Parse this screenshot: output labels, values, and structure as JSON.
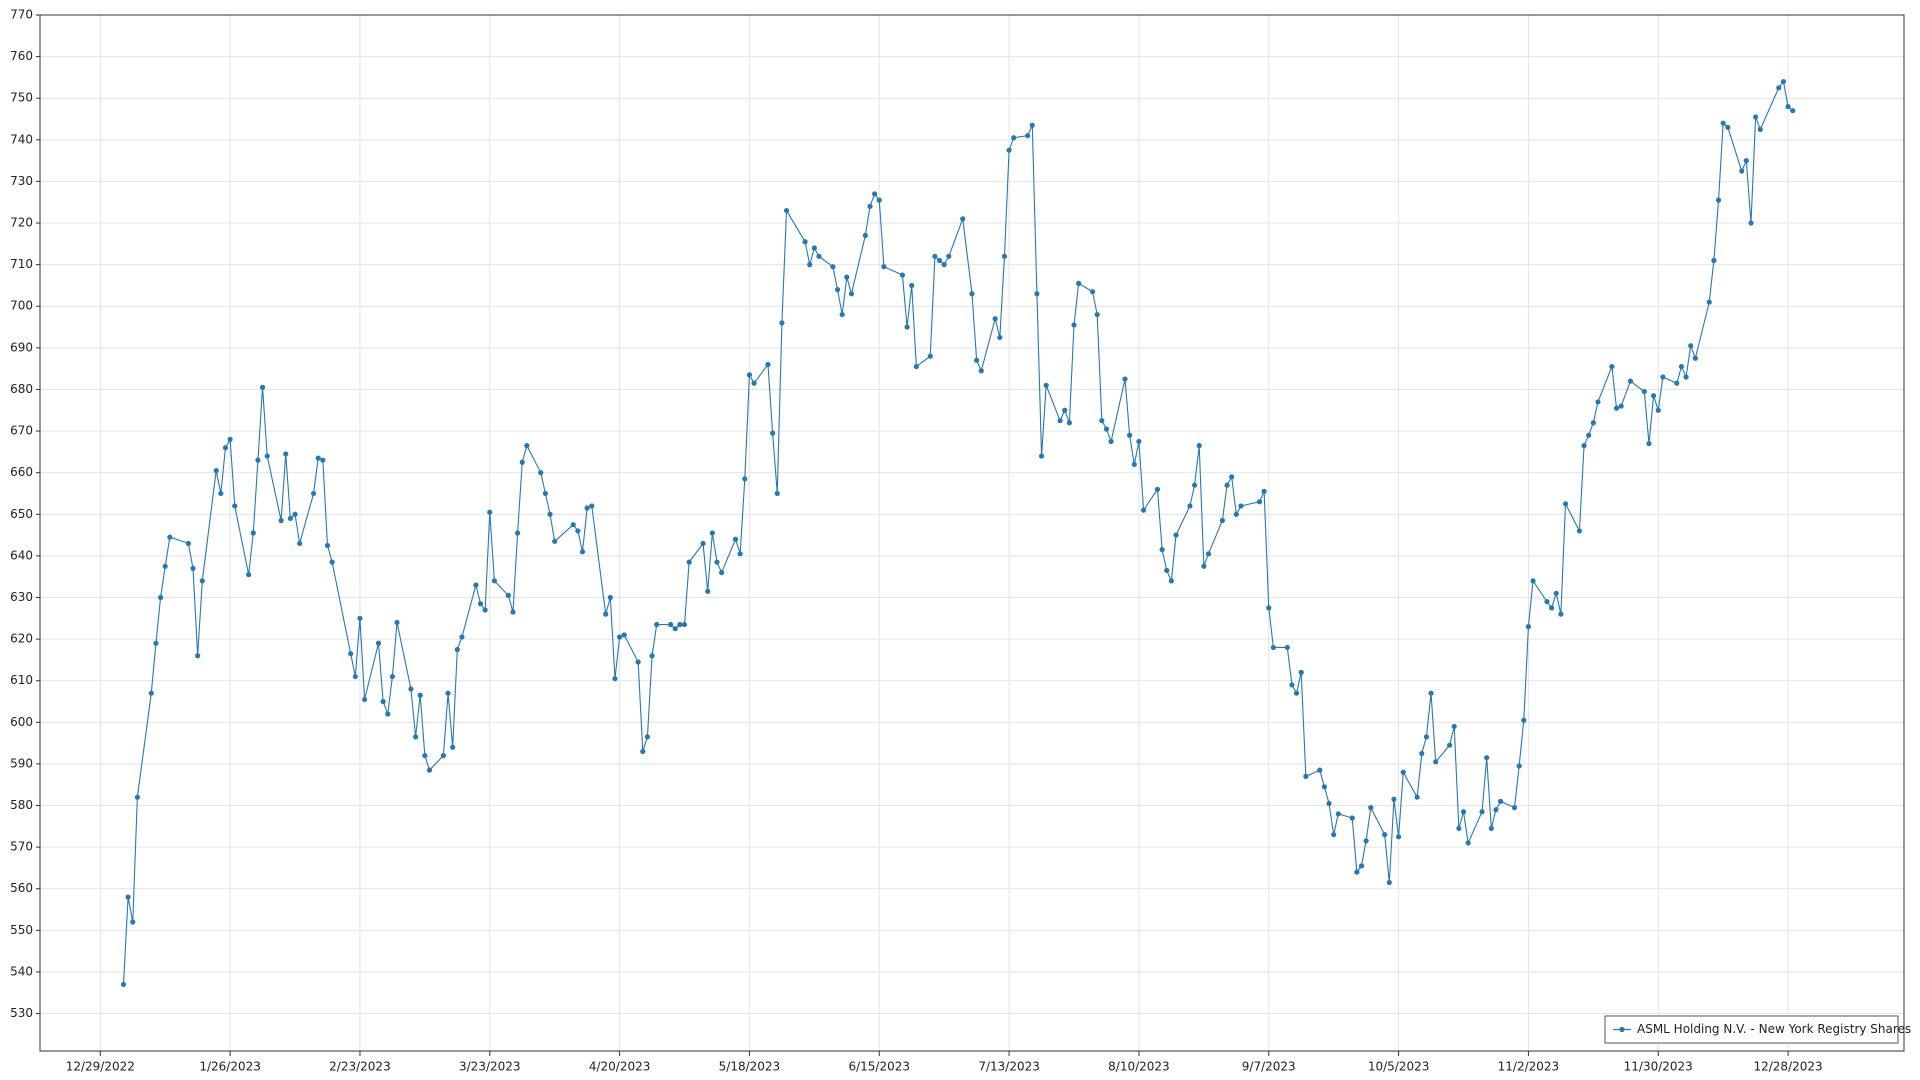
{
  "chart_data": {
    "type": "line",
    "xlim": [
      "12/16/2022",
      "1/22/2024"
    ],
    "ylim": [
      521,
      770
    ],
    "xticks": [
      "12/29/2022",
      "1/26/2023",
      "2/23/2023",
      "3/23/2023",
      "4/20/2023",
      "5/18/2023",
      "6/15/2023",
      "7/13/2023",
      "8/10/2023",
      "9/7/2023",
      "10/5/2023",
      "11/2/2023",
      "11/30/2023",
      "12/28/2023"
    ],
    "yticks": [
      530,
      540,
      550,
      560,
      570,
      580,
      590,
      600,
      610,
      620,
      630,
      640,
      650,
      660,
      670,
      680,
      690,
      700,
      710,
      720,
      730,
      740,
      750,
      760,
      770
    ],
    "grid": true,
    "legend": "lower right",
    "x": [
      "1/3/2023",
      "1/4/2023",
      "1/5/2023",
      "1/6/2023",
      "1/9/2023",
      "1/10/2023",
      "1/11/2023",
      "1/12/2023",
      "1/13/2023",
      "1/17/2023",
      "1/18/2023",
      "1/19/2023",
      "1/20/2023",
      "1/23/2023",
      "1/24/2023",
      "1/25/2023",
      "1/26/2023",
      "1/27/2023",
      "1/30/2023",
      "1/31/2023",
      "2/1/2023",
      "2/2/2023",
      "2/3/2023",
      "2/6/2023",
      "2/7/2023",
      "2/8/2023",
      "2/9/2023",
      "2/10/2023",
      "2/13/2023",
      "2/14/2023",
      "2/15/2023",
      "2/16/2023",
      "2/17/2023",
      "2/21/2023",
      "2/22/2023",
      "2/23/2023",
      "2/24/2023",
      "2/27/2023",
      "2/28/2023",
      "3/1/2023",
      "3/2/2023",
      "3/3/2023",
      "3/6/2023",
      "3/7/2023",
      "3/8/2023",
      "3/9/2023",
      "3/10/2023",
      "3/13/2023",
      "3/14/2023",
      "3/15/2023",
      "3/16/2023",
      "3/17/2023",
      "3/20/2023",
      "3/21/2023",
      "3/22/2023",
      "3/23/2023",
      "3/24/2023",
      "3/27/2023",
      "3/28/2023",
      "3/29/2023",
      "3/30/2023",
      "3/31/2023",
      "4/3/2023",
      "4/4/2023",
      "4/5/2023",
      "4/6/2023",
      "4/10/2023",
      "4/11/2023",
      "4/12/2023",
      "4/13/2023",
      "4/14/2023",
      "4/17/2023",
      "4/18/2023",
      "4/19/2023",
      "4/20/2023",
      "4/21/2023",
      "4/24/2023",
      "4/25/2023",
      "4/26/2023",
      "4/27/2023",
      "4/28/2023",
      "5/1/2023",
      "5/2/2023",
      "5/3/2023",
      "5/4/2023",
      "5/5/2023",
      "5/8/2023",
      "5/9/2023",
      "5/10/2023",
      "5/11/2023",
      "5/12/2023",
      "5/15/2023",
      "5/16/2023",
      "5/17/2023",
      "5/18/2023",
      "5/19/2023",
      "5/22/2023",
      "5/23/2023",
      "5/24/2023",
      "5/25/2023",
      "5/26/2023",
      "5/30/2023",
      "5/31/2023",
      "6/1/2023",
      "6/2/2023",
      "6/5/2023",
      "6/6/2023",
      "6/7/2023",
      "6/8/2023",
      "6/9/2023",
      "6/12/2023",
      "6/13/2023",
      "6/14/2023",
      "6/15/2023",
      "6/16/2023",
      "6/20/2023",
      "6/21/2023",
      "6/22/2023",
      "6/23/2023",
      "6/26/2023",
      "6/27/2023",
      "6/28/2023",
      "6/29/2023",
      "6/30/2023",
      "7/3/2023",
      "7/5/2023",
      "7/6/2023",
      "7/7/2023",
      "7/10/2023",
      "7/11/2023",
      "7/12/2023",
      "7/13/2023",
      "7/14/2023",
      "7/17/2023",
      "7/18/2023",
      "7/19/2023",
      "7/20/2023",
      "7/21/2023",
      "7/24/2023",
      "7/25/2023",
      "7/26/2023",
      "7/27/2023",
      "7/28/2023",
      "7/31/2023",
      "8/1/2023",
      "8/2/2023",
      "8/3/2023",
      "8/4/2023",
      "8/7/2023",
      "8/8/2023",
      "8/9/2023",
      "8/10/2023",
      "8/11/2023",
      "8/14/2023",
      "8/15/2023",
      "8/16/2023",
      "8/17/2023",
      "8/18/2023",
      "8/21/2023",
      "8/22/2023",
      "8/23/2023",
      "8/24/2023",
      "8/25/2023",
      "8/28/2023",
      "8/29/2023",
      "8/30/2023",
      "8/31/2023",
      "9/1/2023",
      "9/5/2023",
      "9/6/2023",
      "9/7/2023",
      "9/8/2023",
      "9/11/2023",
      "9/12/2023",
      "9/13/2023",
      "9/14/2023",
      "9/15/2023",
      "9/18/2023",
      "9/19/2023",
      "9/20/2023",
      "9/21/2023",
      "9/22/2023",
      "9/25/2023",
      "9/26/2023",
      "9/27/2023",
      "9/28/2023",
      "9/29/2023",
      "10/2/2023",
      "10/3/2023",
      "10/4/2023",
      "10/5/2023",
      "10/6/2023",
      "10/9/2023",
      "10/10/2023",
      "10/11/2023",
      "10/12/2023",
      "10/13/2023",
      "10/16/2023",
      "10/17/2023",
      "10/18/2023",
      "10/19/2023",
      "10/20/2023",
      "10/23/2023",
      "10/24/2023",
      "10/25/2023",
      "10/26/2023",
      "10/27/2023",
      "10/30/2023",
      "10/31/2023",
      "11/1/2023",
      "11/2/2023",
      "11/3/2023",
      "11/6/2023",
      "11/7/2023",
      "11/8/2023",
      "11/9/2023",
      "11/10/2023",
      "11/13/2023",
      "11/14/2023",
      "11/15/2023",
      "11/16/2023",
      "11/17/2023",
      "11/20/2023",
      "11/21/2023",
      "11/22/2023",
      "11/24/2023",
      "11/27/2023",
      "11/28/2023",
      "11/29/2023",
      "11/30/2023",
      "12/1/2023",
      "12/4/2023",
      "12/5/2023",
      "12/6/2023",
      "12/7/2023",
      "12/8/2023",
      "12/11/2023",
      "12/12/2023",
      "12/13/2023",
      "12/14/2023",
      "12/15/2023",
      "12/18/2023",
      "12/19/2023",
      "12/20/2023",
      "12/21/2023",
      "12/22/2023",
      "12/26/2023",
      "12/27/2023",
      "12/28/2023",
      "12/29/2023"
    ],
    "series": [
      {
        "name": "ASML Holding N.V. - New York Registry Shares",
        "color": "#2878b0",
        "values": [
          537,
          558,
          552,
          582,
          607,
          619,
          630,
          637.5,
          644.5,
          643,
          637,
          616,
          634,
          660.5,
          655,
          666,
          668,
          652,
          635.5,
          645.5,
          663,
          680.5,
          664,
          648.5,
          664.5,
          649,
          650,
          643,
          655,
          663.5,
          663,
          642.5,
          638.5,
          616.5,
          611,
          625,
          605.5,
          619,
          605,
          602,
          611,
          624,
          608,
          596.5,
          606.5,
          592,
          588.5,
          592,
          607,
          594,
          617.5,
          620.5,
          633,
          628.5,
          627,
          650.5,
          634,
          630.5,
          626.5,
          645.5,
          662.5,
          666.5,
          660,
          655,
          650,
          643.5,
          647.5,
          646,
          641,
          651.5,
          652,
          626,
          630,
          610.5,
          620.5,
          621,
          614.5,
          593,
          596.5,
          616,
          623.5,
          623.5,
          622.5,
          623.5,
          623.5,
          638.5,
          643,
          631.5,
          645.5,
          638.5,
          636,
          644,
          640.5,
          658.5,
          683.5,
          681.5,
          686,
          669.5,
          655,
          696,
          723,
          715.5,
          710,
          714,
          712,
          709.5,
          704,
          698,
          707,
          703,
          717,
          724,
          727,
          725.5,
          709.5,
          707.5,
          695,
          705,
          685.5,
          688,
          712,
          711,
          710,
          712,
          721,
          703,
          687,
          684.5,
          697,
          692.5,
          712,
          737.5,
          740.5,
          741,
          743.5,
          703,
          664,
          681,
          672.5,
          675,
          672,
          695.5,
          705.5,
          703.5,
          698,
          672.5,
          670.5,
          667.5,
          682.5,
          669,
          662,
          667.5,
          651,
          656,
          641.5,
          636.5,
          634,
          645,
          652,
          657,
          666.5,
          637.5,
          640.5,
          648.5,
          657,
          659,
          650,
          652,
          653,
          655.5,
          627.5,
          618,
          618,
          609,
          607,
          612,
          587,
          588.5,
          584.5,
          580.5,
          573,
          578,
          577,
          564,
          565.5,
          571.5,
          579.5,
          573,
          561.5,
          581.5,
          572.5,
          588,
          582,
          592.5,
          596.5,
          607,
          590.5,
          594.5,
          599,
          574.5,
          578.5,
          571,
          578.5,
          591.5,
          574.5,
          579,
          581,
          579.5,
          589.5,
          600.5,
          623,
          634,
          629,
          627.5,
          631,
          626,
          652.5,
          646,
          666.5,
          669,
          672,
          677,
          685.5,
          675.5,
          676,
          682,
          679.5,
          667,
          678.5,
          675,
          683,
          681.5,
          685.5,
          683,
          690.5,
          687.5,
          701,
          711,
          725.5,
          744,
          743,
          732.5,
          735,
          720,
          745.5,
          742.5,
          752.5,
          754,
          748,
          747
        ]
      }
    ]
  }
}
